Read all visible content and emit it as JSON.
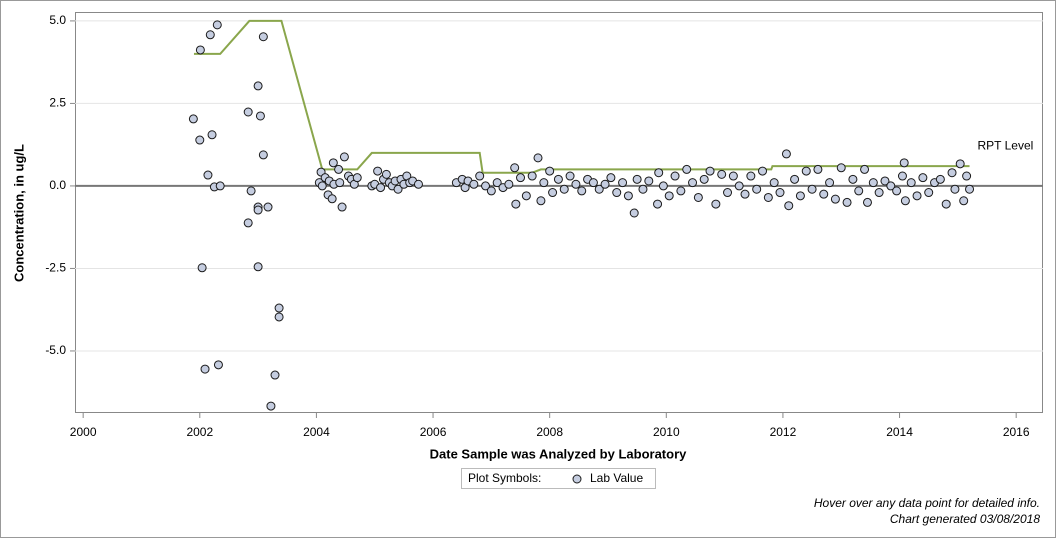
{
  "chart_data": {
    "type": "scatter",
    "xlabel": "Date Sample was Analyzed by Laboratory",
    "ylabel": "Concentration, in ug/L",
    "xlim": [
      1999.86,
      2016.46
    ],
    "ylim": [
      -6.88,
      5.27
    ],
    "xticks": [
      2000,
      2002,
      2004,
      2006,
      2008,
      2010,
      2012,
      2014,
      2016
    ],
    "yticks": [
      {
        "value": 5,
        "label": "5.0"
      },
      {
        "value": 2.5,
        "label": "2.5"
      },
      {
        "value": 0,
        "label": "0.0"
      },
      {
        "value": -2.5,
        "label": "-2.5"
      },
      {
        "value": -5,
        "label": "-5.0"
      }
    ],
    "grid": true,
    "legend_title": "Plot Symbols:",
    "x": [
      2001.89,
      2002.01,
      2002.18,
      2002.3,
      2002.0,
      2002.21,
      2002.14,
      2002.25,
      2002.35,
      2002.04,
      2002.09,
      2002.32,
      2002.83,
      2003.0,
      2003.09,
      2003.04,
      2003.09,
      2002.88,
      2002.83,
      2003.0,
      2003.0,
      2003.17,
      2003.0,
      2003.36,
      2003.36,
      2003.29,
      2003.22,
      2004.05,
      2004.08,
      2004.1,
      2004.15,
      2004.2,
      2004.22,
      2004.27,
      2004.29,
      2004.3,
      2004.38,
      2004.4,
      2004.44,
      2004.48,
      2004.55,
      2004.6,
      2004.65,
      2004.7,
      2004.95,
      2005.0,
      2005.05,
      2005.1,
      2005.15,
      2005.2,
      2005.25,
      2005.3,
      2005.35,
      2005.4,
      2005.45,
      2005.5,
      2005.55,
      2005.6,
      2005.65,
      2005.75,
      2006.4,
      2006.5,
      2006.55,
      2006.6,
      2006.7,
      2006.8,
      2006.9,
      2007.0,
      2007.1,
      2007.2,
      2007.3,
      2007.4,
      2007.42,
      2007.5,
      2007.6,
      2007.7,
      2007.8,
      2007.85,
      2007.9,
      2008.0,
      2008.05,
      2008.15,
      2008.25,
      2008.35,
      2008.45,
      2008.55,
      2008.65,
      2008.75,
      2008.85,
      2008.95,
      2009.05,
      2009.15,
      2009.25,
      2009.35,
      2009.45,
      2009.5,
      2009.6,
      2009.7,
      2009.85,
      2009.87,
      2009.95,
      2010.05,
      2010.15,
      2010.25,
      2010.35,
      2010.45,
      2010.55,
      2010.65,
      2010.75,
      2010.85,
      2010.95,
      2011.05,
      2011.15,
      2011.25,
      2011.35,
      2011.45,
      2011.55,
      2011.65,
      2011.75,
      2011.85,
      2011.95,
      2012.06,
      2012.1,
      2012.2,
      2012.3,
      2012.4,
      2012.5,
      2012.6,
      2012.7,
      2012.8,
      2012.9,
      2013.0,
      2013.1,
      2013.2,
      2013.3,
      2013.4,
      2013.45,
      2013.55,
      2013.65,
      2013.75,
      2013.85,
      2013.95,
      2014.05,
      2014.08,
      2014.1,
      2014.2,
      2014.3,
      2014.4,
      2014.5,
      2014.6,
      2014.7,
      2014.8,
      2014.9,
      2014.95,
      2015.04,
      2015.1,
      2015.15,
      2015.2
    ],
    "series": [
      {
        "name": "Lab Value",
        "color": "#c5cde0",
        "values": [
          2.03,
          4.12,
          4.58,
          4.88,
          1.39,
          1.55,
          0.33,
          -0.03,
          0.0,
          -2.48,
          -5.55,
          -5.42,
          2.24,
          3.03,
          4.52,
          2.12,
          0.94,
          -0.15,
          -1.12,
          -0.64,
          -0.73,
          -0.64,
          -2.45,
          -3.7,
          -3.97,
          -5.73,
          -6.67,
          0.1,
          0.42,
          0.0,
          0.25,
          -0.27,
          0.15,
          -0.39,
          0.7,
          0.05,
          0.5,
          0.1,
          -0.64,
          0.88,
          0.3,
          0.2,
          0.05,
          0.25,
          0.0,
          0.05,
          0.45,
          -0.05,
          0.2,
          0.35,
          0.1,
          0.0,
          0.15,
          -0.1,
          0.2,
          0.05,
          0.3,
          0.1,
          0.15,
          0.05,
          0.1,
          0.2,
          -0.05,
          0.15,
          0.05,
          0.3,
          0.0,
          -0.15,
          0.1,
          -0.05,
          0.05,
          0.55,
          -0.55,
          0.25,
          -0.3,
          0.3,
          0.85,
          -0.45,
          0.1,
          0.45,
          -0.2,
          0.2,
          -0.1,
          0.3,
          0.05,
          -0.15,
          0.2,
          0.1,
          -0.1,
          0.05,
          0.25,
          -0.2,
          0.1,
          -0.3,
          -0.82,
          0.2,
          -0.1,
          0.15,
          -0.55,
          0.4,
          0.0,
          -0.3,
          0.3,
          -0.15,
          0.5,
          0.1,
          -0.35,
          0.2,
          0.45,
          -0.55,
          0.35,
          -0.2,
          0.3,
          0.0,
          -0.25,
          0.3,
          -0.1,
          0.45,
          -0.35,
          0.1,
          -0.2,
          0.97,
          -0.6,
          0.2,
          -0.3,
          0.45,
          -0.1,
          0.5,
          -0.25,
          0.1,
          -0.4,
          0.55,
          -0.5,
          0.2,
          -0.15,
          0.5,
          -0.5,
          0.1,
          -0.2,
          0.15,
          0.0,
          -0.15,
          0.3,
          0.7,
          -0.45,
          0.1,
          -0.3,
          0.25,
          -0.2,
          0.1,
          0.2,
          -0.55,
          0.4,
          -0.1,
          0.67,
          -0.45,
          0.3,
          -0.1
        ]
      }
    ],
    "rpt_level": {
      "name": "RPT Level",
      "color": "#8aa64c",
      "x": [
        2001.9,
        2002.35,
        2002.85,
        2003.4,
        2004.1,
        2004.7,
        2004.95,
        2006.8,
        2006.85,
        2007.7,
        2007.85,
        2011.8,
        2011.82,
        2015.2
      ],
      "values": [
        4,
        4,
        5,
        5,
        0.5,
        0.5,
        1,
        1,
        0.4,
        0.4,
        0.5,
        0.5,
        0.6,
        0.6
      ]
    },
    "footnotes": [
      "Hover over any data point for detailed info.",
      "Chart generated 03/08/2018"
    ]
  }
}
